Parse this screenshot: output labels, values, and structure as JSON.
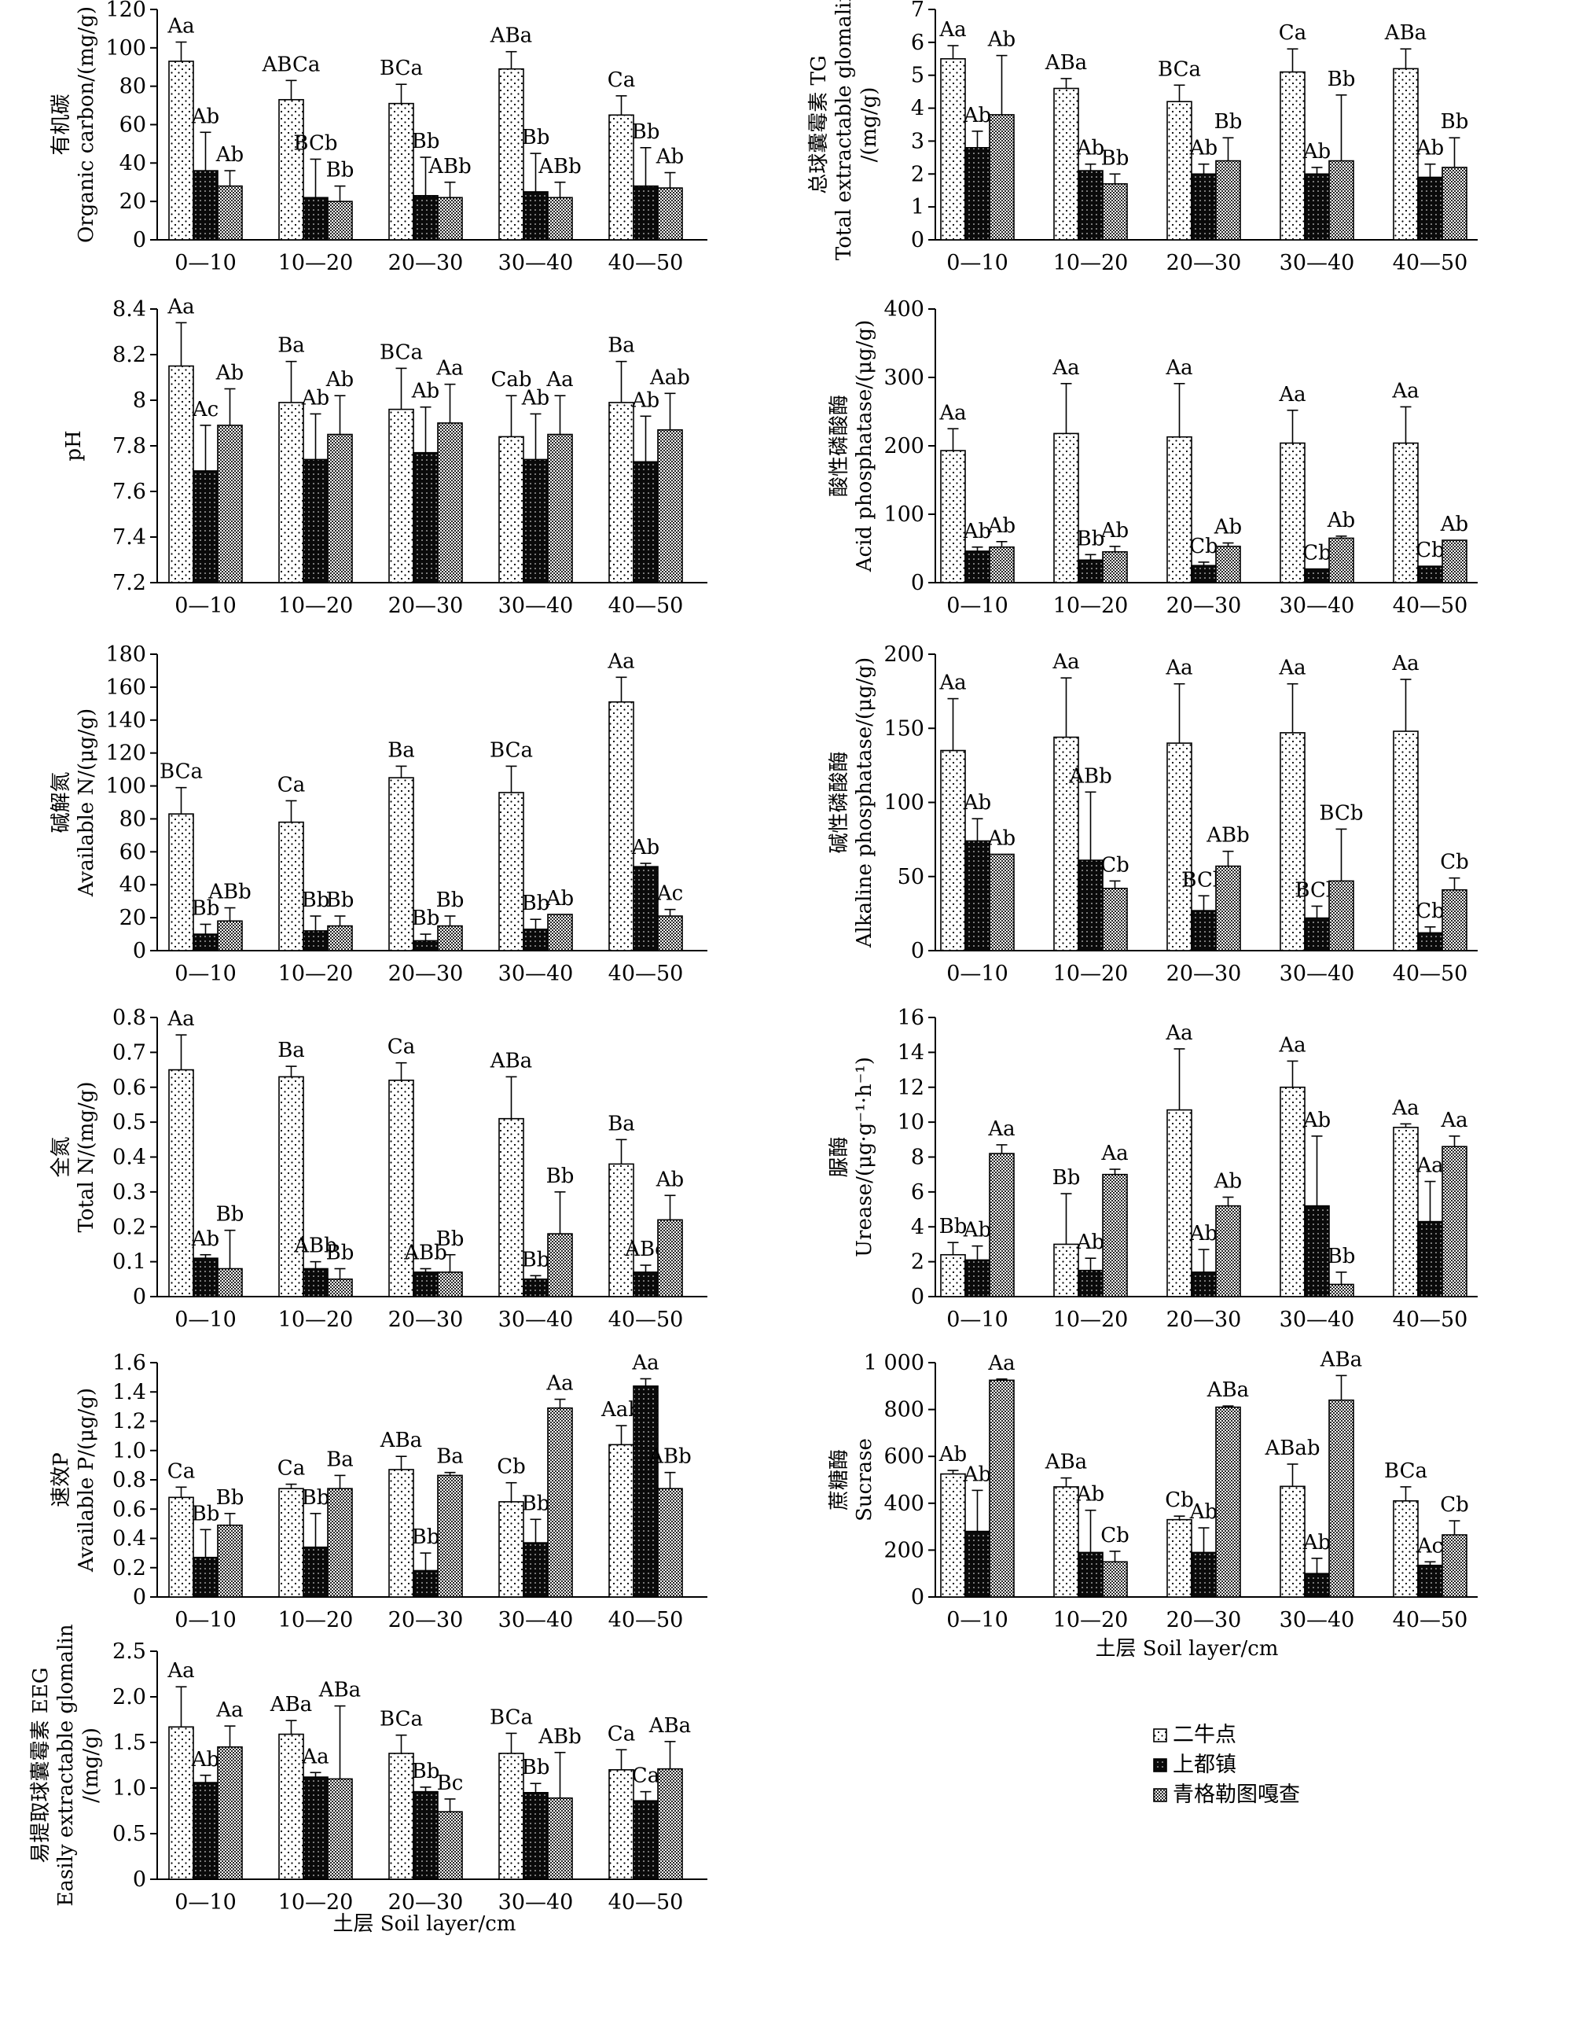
{
  "categories": [
    "0—10",
    "10—20",
    "20—30",
    "30—40",
    "40—50"
  ],
  "legend": [
    "二牛点",
    "上都镇",
    "青格勒图嘎查"
  ],
  "x_axis_label": "土层 Soil layer/cm",
  "chart_data": [
    {
      "type": "bar",
      "ylabel_cn": "有机碳",
      "ylabel_en": "Organic carbon/(mg/g)",
      "ylim": [
        0,
        120
      ],
      "yticks": [
        0,
        20,
        40,
        60,
        80,
        100,
        120
      ],
      "series": [
        {
          "name": "二牛点",
          "values": [
            93,
            73,
            71,
            89,
            65
          ],
          "errors": [
            10,
            10,
            10,
            9,
            10
          ],
          "labels": [
            "Aa",
            "ABCa",
            "BCa",
            "ABa",
            "Ca"
          ]
        },
        {
          "name": "上都镇",
          "values": [
            36,
            22,
            23,
            25,
            28
          ],
          "errors": [
            20,
            20,
            20,
            20,
            20
          ],
          "labels": [
            "Ab",
            "BCb",
            "Bb",
            "Bb",
            "Bb"
          ]
        },
        {
          "name": "青格勒图嘎查",
          "values": [
            28,
            20,
            22,
            22,
            27
          ],
          "errors": [
            8,
            8,
            8,
            8,
            8
          ],
          "labels": [
            "Ab",
            "Bb",
            "ABb",
            "ABb",
            "Ab"
          ]
        }
      ]
    },
    {
      "type": "bar",
      "ylabel_cn": "总球囊霉素 TG",
      "ylabel_en": "Total extractable glomalin",
      "ylabel_en2": "/(mg/g)",
      "ylim": [
        0,
        7
      ],
      "yticks": [
        0,
        1,
        2,
        3,
        4,
        5,
        6,
        7
      ],
      "series": [
        {
          "name": "二牛点",
          "values": [
            5.5,
            4.6,
            4.2,
            5.1,
            5.2
          ],
          "errors": [
            0.4,
            0.3,
            0.5,
            0.7,
            0.6
          ],
          "labels": [
            "Aa",
            "ABa",
            "BCa",
            "Ca",
            "ABa"
          ]
        },
        {
          "name": "上都镇",
          "values": [
            2.8,
            2.1,
            2.0,
            2.0,
            1.9
          ],
          "errors": [
            0.5,
            0.2,
            0.3,
            0.2,
            0.4
          ],
          "labels": [
            "Ab",
            "Ab",
            "Ab",
            "Ab",
            "Ab"
          ]
        },
        {
          "name": "青格勒图嘎查",
          "values": [
            3.8,
            1.7,
            2.4,
            2.4,
            2.2
          ],
          "errors": [
            1.8,
            0.3,
            0.7,
            2.0,
            0.9
          ],
          "labels": [
            "Ab",
            "Bb",
            "Bb",
            "Bb",
            "Bb"
          ]
        }
      ]
    },
    {
      "type": "bar",
      "ylabel_cn": "",
      "ylabel_en": "pH",
      "ylim": [
        7.2,
        8.4
      ],
      "yticks": [
        7.2,
        7.4,
        7.6,
        7.8,
        8.0,
        8.2,
        8.4
      ],
      "series": [
        {
          "name": "二牛点",
          "values": [
            8.15,
            7.99,
            7.96,
            7.84,
            7.99
          ],
          "errors": [
            0.19,
            0.18,
            0.18,
            0.18,
            0.18
          ],
          "labels": [
            "Aa",
            "Ba",
            "BCa",
            "Cab",
            "Ba"
          ]
        },
        {
          "name": "上都镇",
          "values": [
            7.69,
            7.74,
            7.77,
            7.74,
            7.73
          ],
          "errors": [
            0.2,
            0.2,
            0.2,
            0.2,
            0.2
          ],
          "labels": [
            "Ac",
            "Ab",
            "Ab",
            "Ab",
            "Ab"
          ]
        },
        {
          "name": "青格勒图嘎查",
          "values": [
            7.89,
            7.85,
            7.9,
            7.85,
            7.87
          ],
          "errors": [
            0.16,
            0.17,
            0.17,
            0.17,
            0.16
          ],
          "labels": [
            "Ab",
            "Ab",
            "Aa",
            "Aa",
            "Aab"
          ]
        }
      ]
    },
    {
      "type": "bar",
      "ylabel_cn": "酸性磷酸酶",
      "ylabel_en": "Acid phosphatase/(μg/g)",
      "ylim": [
        0,
        400
      ],
      "yticks": [
        0,
        100,
        200,
        300,
        400
      ],
      "series": [
        {
          "name": "二牛点",
          "values": [
            193,
            218,
            213,
            204,
            204
          ],
          "errors": [
            32,
            73,
            78,
            48,
            53
          ],
          "labels": [
            "Aa",
            "Aa",
            "Aa",
            "Aa",
            "Aa"
          ]
        },
        {
          "name": "上都镇",
          "values": [
            46,
            33,
            25,
            20,
            24
          ],
          "errors": [
            6,
            8,
            5,
            0,
            0
          ],
          "labels": [
            "Ab",
            "Bb",
            "Cb",
            "Cb",
            "Cb"
          ]
        },
        {
          "name": "青格勒图嘎查",
          "values": [
            52,
            45,
            53,
            65,
            62
          ],
          "errors": [
            8,
            8,
            5,
            3,
            0
          ],
          "labels": [
            "Ab",
            "Ab",
            "Ab",
            "Ab",
            "Ab"
          ]
        }
      ]
    },
    {
      "type": "bar",
      "ylabel_cn": "碱解氮",
      "ylabel_en": "Available N/(μg/g)",
      "ylim": [
        0,
        180
      ],
      "yticks": [
        0,
        20,
        40,
        60,
        80,
        100,
        120,
        140,
        160,
        180
      ],
      "series": [
        {
          "name": "二牛点",
          "values": [
            83,
            78,
            105,
            96,
            151
          ],
          "errors": [
            16,
            13,
            7,
            16,
            15
          ],
          "labels": [
            "BCa",
            "Ca",
            "Ba",
            "BCa",
            "Aa"
          ]
        },
        {
          "name": "上都镇",
          "values": [
            10,
            12,
            6,
            13,
            51
          ],
          "errors": [
            6,
            9,
            4,
            6,
            2
          ],
          "labels": [
            "Bb",
            "Bb",
            "Bb",
            "Bb",
            "Ab"
          ]
        },
        {
          "name": "青格勒图嘎查",
          "values": [
            18,
            15,
            15,
            22,
            21
          ],
          "errors": [
            8,
            6,
            6,
            0,
            4
          ],
          "labels": [
            "ABb",
            "Bb",
            "Bb",
            "Ab",
            "Ac"
          ]
        }
      ]
    },
    {
      "type": "bar",
      "ylabel_cn": "碱性磷酸酶",
      "ylabel_en": "Alkaline phosphatase/(μg/g)",
      "ylim": [
        0,
        200
      ],
      "yticks": [
        0,
        50,
        100,
        150,
        200
      ],
      "series": [
        {
          "name": "二牛点",
          "values": [
            135,
            144,
            140,
            147,
            148
          ],
          "errors": [
            35,
            40,
            40,
            33,
            35
          ],
          "labels": [
            "Aa",
            "Aa",
            "Aa",
            "Aa",
            "Aa"
          ]
        },
        {
          "name": "上都镇",
          "values": [
            74,
            61,
            27,
            22,
            12
          ],
          "errors": [
            15,
            46,
            10,
            8,
            4
          ],
          "labels": [
            "Ab",
            "ABb",
            "BCb",
            "BCb",
            "Cb"
          ]
        },
        {
          "name": "青格勒图嘎查",
          "values": [
            65,
            42,
            57,
            47,
            41
          ],
          "errors": [
            0,
            5,
            10,
            35,
            8
          ],
          "labels": [
            "Ab",
            "Cb",
            "ABb",
            "BCb",
            "Cb"
          ]
        }
      ]
    },
    {
      "type": "bar",
      "ylabel_cn": "全氮",
      "ylabel_en": "Total N/(mg/g)",
      "ylim": [
        0,
        0.8
      ],
      "yticks": [
        0,
        0.1,
        0.2,
        0.3,
        0.4,
        0.5,
        0.6,
        0.7,
        0.8
      ],
      "series": [
        {
          "name": "二牛点",
          "values": [
            0.65,
            0.63,
            0.62,
            0.51,
            0.38
          ],
          "errors": [
            0.1,
            0.03,
            0.05,
            0.12,
            0.07
          ],
          "labels": [
            "Aa",
            "Ba",
            "Ca",
            "ABa",
            "Ba"
          ]
        },
        {
          "name": "上都镇",
          "values": [
            0.11,
            0.08,
            0.07,
            0.05,
            0.07
          ],
          "errors": [
            0.01,
            0.02,
            0.01,
            0.01,
            0.02
          ],
          "labels": [
            "Ab",
            "ABb",
            "ABb",
            "Bb",
            "ABc"
          ]
        },
        {
          "name": "青格勒图嘎查",
          "values": [
            0.08,
            0.05,
            0.07,
            0.18,
            0.22
          ],
          "errors": [
            0.11,
            0.03,
            0.05,
            0.12,
            0.07
          ],
          "labels": [
            "Bb",
            "Bb",
            "Bb",
            "Bb",
            "Ab"
          ]
        }
      ]
    },
    {
      "type": "bar",
      "ylabel_cn": "脲酶",
      "ylabel_en": "Urease/(μg·g⁻¹·h⁻¹)",
      "ylim": [
        0,
        16
      ],
      "yticks": [
        0,
        2,
        4,
        6,
        8,
        10,
        12,
        14,
        16
      ],
      "series": [
        {
          "name": "二牛点",
          "values": [
            2.4,
            3.0,
            10.7,
            12.0,
            9.7
          ],
          "errors": [
            0.7,
            2.9,
            3.5,
            1.5,
            0.2
          ],
          "labels": [
            "Bb",
            "Bb",
            "Aa",
            "Aa",
            "Aa"
          ]
        },
        {
          "name": "上都镇",
          "values": [
            2.1,
            1.5,
            1.4,
            5.2,
            4.3
          ],
          "errors": [
            0.8,
            0.7,
            1.3,
            4.0,
            2.3
          ],
          "labels": [
            "Ab",
            "Ab",
            "Ab",
            "Ab",
            "Aa"
          ]
        },
        {
          "name": "青格勒图嘎查",
          "values": [
            8.2,
            7.0,
            5.2,
            0.7,
            8.6
          ],
          "errors": [
            0.5,
            0.3,
            0.5,
            0.7,
            0.6
          ],
          "labels": [
            "Aa",
            "Aa",
            "Ab",
            "Bb",
            "Aa"
          ]
        }
      ]
    },
    {
      "type": "bar",
      "ylabel_cn": "速效P",
      "ylabel_en": "Available P/(μg/g)",
      "ylim": [
        0,
        1.6
      ],
      "yticks": [
        0,
        0.2,
        0.4,
        0.6,
        0.8,
        1.0,
        1.2,
        1.4,
        1.6
      ],
      "series": [
        {
          "name": "二牛点",
          "values": [
            0.68,
            0.74,
            0.87,
            0.65,
            1.04
          ],
          "errors": [
            0.07,
            0.03,
            0.09,
            0.13,
            0.13
          ],
          "labels": [
            "Ca",
            "Ca",
            "ABa",
            "Cb",
            "Aab"
          ]
        },
        {
          "name": "上都镇",
          "values": [
            0.27,
            0.34,
            0.18,
            0.37,
            1.44
          ],
          "errors": [
            0.19,
            0.23,
            0.12,
            0.16,
            0.05
          ],
          "labels": [
            "Bb",
            "Bb",
            "Bb",
            "Bb",
            "Aa"
          ]
        },
        {
          "name": "青格勒图嘎查",
          "values": [
            0.49,
            0.74,
            0.83,
            1.29,
            0.74
          ],
          "errors": [
            0.08,
            0.09,
            0.02,
            0.06,
            0.11
          ],
          "labels": [
            "Bb",
            "Ba",
            "Ba",
            "Aa",
            "ABb"
          ]
        }
      ]
    },
    {
      "type": "bar",
      "ylabel_cn": "蔗糖酶",
      "ylabel_en": "Sucrase",
      "ylim": [
        0,
        1000
      ],
      "yticks": [
        0,
        200,
        400,
        600,
        800,
        1000
      ],
      "ytick_labels": [
        "0",
        "200",
        "400",
        "600",
        "800",
        "1 000"
      ],
      "series": [
        {
          "name": "二牛点",
          "values": [
            525,
            470,
            330,
            472,
            410
          ],
          "errors": [
            15,
            38,
            15,
            95,
            60
          ],
          "labels": [
            "Ab",
            "ABa",
            "Cb",
            "ABab",
            "BCa"
          ]
        },
        {
          "name": "上都镇",
          "values": [
            280,
            190,
            190,
            100,
            135
          ],
          "errors": [
            175,
            180,
            105,
            65,
            15
          ],
          "labels": [
            "Ab",
            "Ab",
            "Ab",
            "Ab",
            "Ac"
          ]
        },
        {
          "name": "青格勒图嘎查",
          "values": [
            925,
            150,
            810,
            840,
            265
          ],
          "errors": [
            5,
            45,
            5,
            105,
            60
          ],
          "labels": [
            "Aa",
            "Cb",
            "ABa",
            "ABa",
            "Cb"
          ]
        }
      ]
    },
    {
      "type": "bar",
      "ylabel_cn": "易提取球囊霉素 EEG",
      "ylabel_en": "Easily extractable glomalin",
      "ylabel_en2": "/(mg/g)",
      "ylim": [
        0,
        2.5
      ],
      "yticks": [
        0,
        0.5,
        1.0,
        1.5,
        2.0,
        2.5
      ],
      "series": [
        {
          "name": "二牛点",
          "values": [
            1.67,
            1.59,
            1.38,
            1.38,
            1.2
          ],
          "errors": [
            0.44,
            0.15,
            0.2,
            0.22,
            0.22
          ],
          "labels": [
            "Aa",
            "ABa",
            "BCa",
            "BCa",
            "Ca"
          ]
        },
        {
          "name": "上都镇",
          "values": [
            1.06,
            1.12,
            0.96,
            0.95,
            0.86
          ],
          "errors": [
            0.08,
            0.05,
            0.05,
            0.1,
            0.1
          ],
          "labels": [
            "Ab",
            "Aa",
            "Bb",
            "Bb",
            "Ca"
          ]
        },
        {
          "name": "青格勒图嘎查",
          "values": [
            1.45,
            1.1,
            0.74,
            0.89,
            1.21
          ],
          "errors": [
            0.23,
            0.8,
            0.14,
            0.5,
            0.3
          ],
          "labels": [
            "Aa",
            "ABa",
            "Bc",
            "ABb",
            "ABa"
          ]
        }
      ]
    }
  ]
}
